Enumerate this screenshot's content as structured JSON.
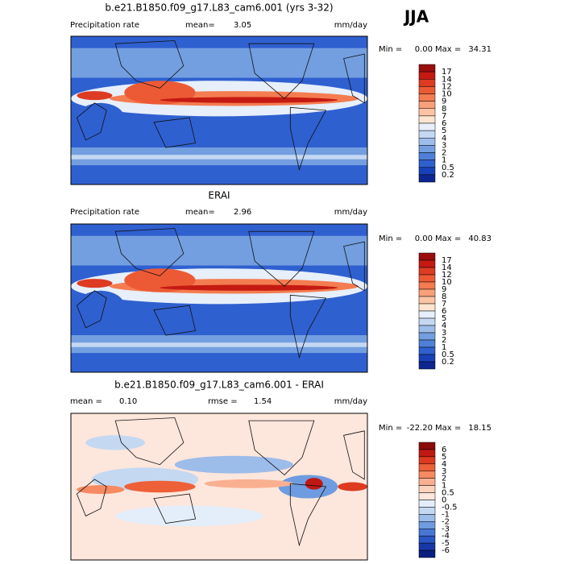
{
  "season": "JJA",
  "panels": [
    {
      "title": "b.e21.B1850.f09_g17.L83_cam6.001 (yrs 3-32)",
      "left_label": "Precipitation rate",
      "mean_label": "mean=",
      "mean": "3.05",
      "units": "mm/day",
      "min_label": "Min =",
      "min": "0.00",
      "max_label": "Max =",
      "max": "34.31",
      "colorbar_labels": [
        "17",
        "14",
        "12",
        "10",
        "9",
        "8",
        "7",
        "6",
        "5",
        "4",
        "3",
        "2",
        "1",
        "0.5",
        "0.2"
      ],
      "colorbar_colors": [
        "#9b0d0d",
        "#c41a12",
        "#dd3b22",
        "#ec5a35",
        "#f47c50",
        "#f9a07a",
        "#fcc4a4",
        "#fde5cf",
        "#e6effa",
        "#c4d8f2",
        "#9dbdea",
        "#739fe0",
        "#4f80d8",
        "#2f60d0",
        "#1840b8",
        "#0c2590"
      ]
    },
    {
      "title": "ERAI",
      "left_label": "Precipitation rate",
      "mean_label": "mean=",
      "mean": "2.96",
      "units": "mm/day",
      "min_label": "Min =",
      "min": "0.00",
      "max_label": "Max =",
      "max": "40.83",
      "colorbar_labels": [
        "17",
        "14",
        "12",
        "10",
        "9",
        "8",
        "7",
        "6",
        "5",
        "4",
        "3",
        "2",
        "1",
        "0.5",
        "0.2"
      ],
      "colorbar_colors": [
        "#9b0d0d",
        "#c41a12",
        "#dd3b22",
        "#ec5a35",
        "#f47c50",
        "#f9a07a",
        "#fcc4a4",
        "#fde5cf",
        "#e6effa",
        "#c4d8f2",
        "#9dbdea",
        "#739fe0",
        "#4f80d8",
        "#2f60d0",
        "#1840b8",
        "#0c2590"
      ]
    },
    {
      "title": "b.e21.B1850.f09_g17.L83_cam6.001 - ERAI",
      "left_label": "mean =",
      "mean": "0.10",
      "rmse_label": "rmse =",
      "rmse": "1.54",
      "units": "mm/day",
      "min_label": "Min =",
      "min": "-22.20",
      "max_label": "Max =",
      "max": "18.15",
      "colorbar_labels": [
        "6",
        "5",
        "4",
        "3",
        "2",
        "1",
        "0.5",
        "0",
        "-0.5",
        "-1",
        "-2",
        "-3",
        "-4",
        "-5",
        "-6"
      ],
      "colorbar_colors": [
        "#8b0a0a",
        "#c01812",
        "#dd3a20",
        "#ee6038",
        "#f68a60",
        "#f9b090",
        "#fcd2bc",
        "#fde6dc",
        "#e4eefa",
        "#c4d8f2",
        "#9cbce9",
        "#6f9ce0",
        "#4876d6",
        "#2a56c4",
        "#1838a8",
        "#0a1f80"
      ]
    }
  ]
}
